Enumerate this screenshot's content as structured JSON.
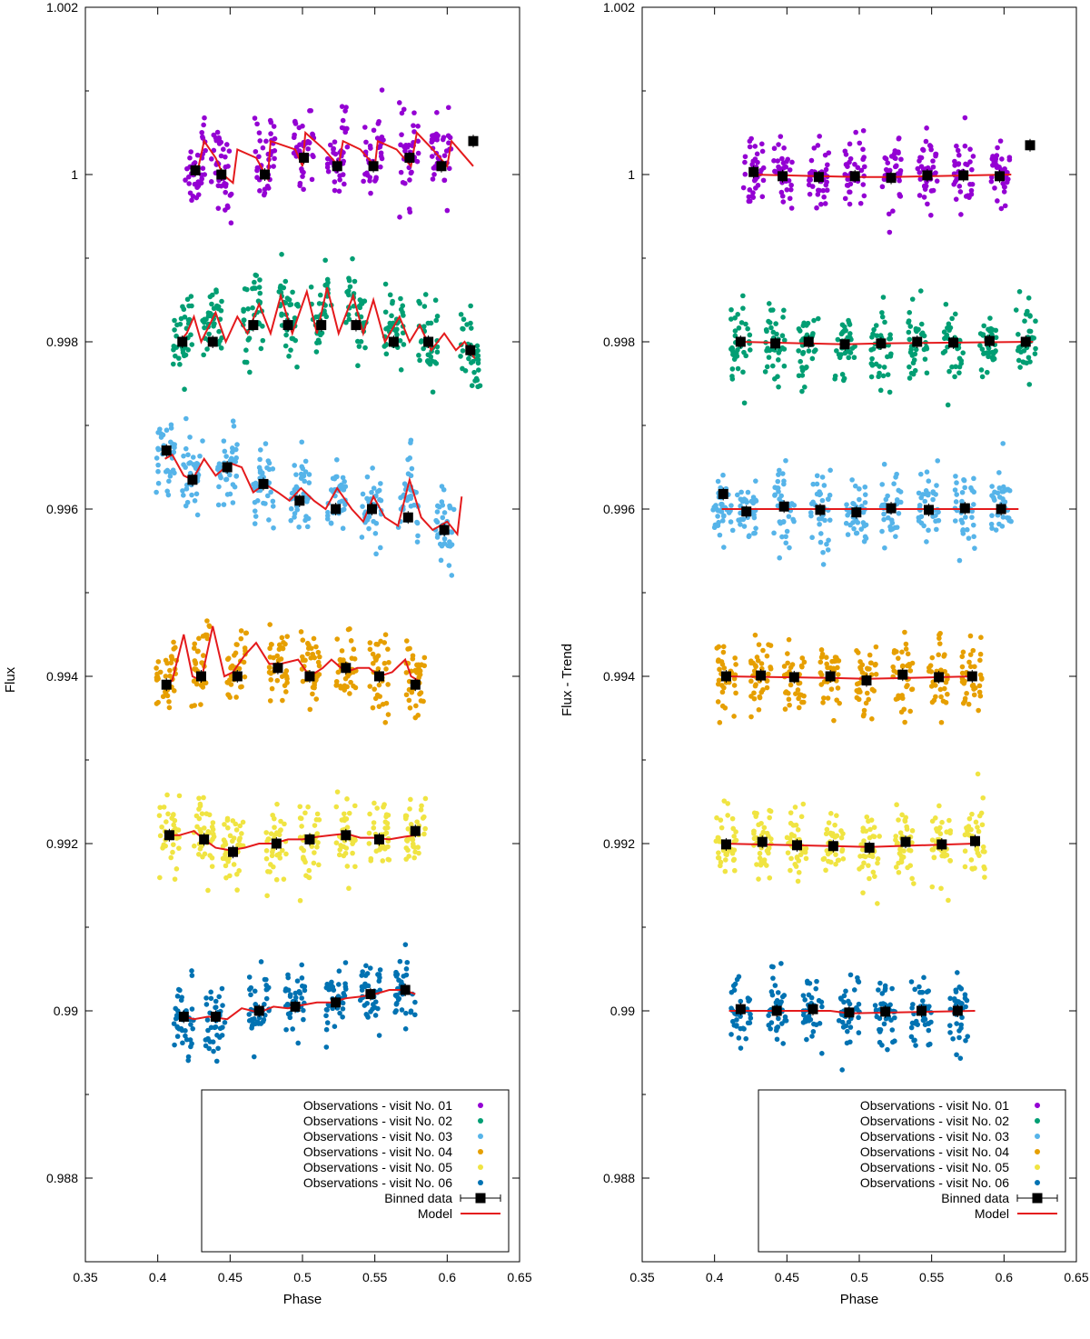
{
  "chart_data": [
    {
      "type": "scatter",
      "panel": "left",
      "title": "",
      "xlabel": "Phase",
      "ylabel": "Flux",
      "xlim": [
        0.35,
        0.65
      ],
      "ylim": [
        0.987,
        1.002
      ],
      "xticks": [
        "0.35",
        "0.4",
        "0.45",
        "0.5",
        "0.55",
        "0.6",
        "0.65"
      ],
      "yticks": [
        "0.988",
        "0.99",
        "0.992",
        "0.994",
        "0.996",
        "0.998",
        "1",
        "1.002"
      ],
      "legend_position": "bottom-right",
      "legend": [
        "Observations - visit No. 01",
        "Observations - visit No. 02",
        "Observations - visit No. 03",
        "Observations - visit No. 04",
        "Observations - visit No. 05",
        "Observations - visit No. 06",
        "Binned data",
        "Model"
      ],
      "series": [
        {
          "name": "Observations - visit No. 01",
          "color": "#9400d3",
          "phase_range": [
            0.425,
            0.605
          ],
          "binned": {
            "x": [
              0.426,
              0.444,
              0.474,
              0.501,
              0.524,
              0.549,
              0.574,
              0.596,
              0.618
            ],
            "y": [
              1.00005,
              1.0,
              1.0,
              1.0002,
              1.0001,
              1.0001,
              1.0002,
              1.0001,
              1.0004
            ]
          },
          "model": {
            "x": [
              0.427,
              0.432,
              0.44,
              0.445,
              0.452,
              0.455,
              0.468,
              0.476,
              0.478,
              0.495,
              0.5,
              0.502,
              0.515,
              0.525,
              0.528,
              0.54,
              0.55,
              0.552,
              0.565,
              0.575,
              0.579,
              0.59,
              0.6,
              0.603,
              0.618
            ],
            "y": [
              1.0,
              1.0004,
              1.0002,
              1.0,
              0.9999,
              1.0003,
              1.0002,
              0.99995,
              1.0004,
              1.0003,
              1.0001,
              1.0005,
              1.0003,
              1.0001,
              1.0004,
              1.0003,
              1.0001,
              1.0004,
              1.0003,
              1.0001,
              1.0005,
              1.0003,
              1.0001,
              1.0004,
              1.0001
            ]
          }
        },
        {
          "name": "Observations - visit No. 02",
          "color": "#009e73",
          "phase_range": [
            0.41,
            0.62
          ],
          "binned": {
            "x": [
              0.417,
              0.438,
              0.466,
              0.49,
              0.513,
              0.537,
              0.563,
              0.587,
              0.616
            ],
            "y": [
              0.998,
              0.998,
              0.9982,
              0.9982,
              0.9982,
              0.9982,
              0.998,
              0.998,
              0.9979
            ]
          },
          "model": {
            "x": [
              0.415,
              0.42,
              0.425,
              0.43,
              0.44,
              0.447,
              0.455,
              0.462,
              0.47,
              0.478,
              0.485,
              0.493,
              0.503,
              0.51,
              0.517,
              0.525,
              0.535,
              0.542,
              0.549,
              0.557,
              0.567,
              0.574,
              0.581,
              0.589,
              0.598,
              0.606,
              0.612,
              0.619
            ],
            "y": [
              0.998,
              0.9981,
              0.9983,
              0.998,
              0.99835,
              0.998,
              0.9983,
              0.9981,
              0.99845,
              0.9981,
              0.99855,
              0.9981,
              0.9986,
              0.9981,
              0.99865,
              0.9981,
              0.99855,
              0.9981,
              0.9985,
              0.998,
              0.9983,
              0.998,
              0.9982,
              0.9979,
              0.9981,
              0.9979,
              0.998,
              0.9978
            ]
          }
        },
        {
          "name": "Observations - visit No. 03",
          "color": "#56b4e9",
          "phase_range": [
            0.405,
            0.61
          ],
          "binned": {
            "x": [
              0.406,
              0.424,
              0.448,
              0.473,
              0.498,
              0.523,
              0.548,
              0.573,
              0.598
            ],
            "y": [
              0.9967,
              0.99635,
              0.9965,
              0.9963,
              0.9961,
              0.996,
              0.996,
              0.9959,
              0.99575
            ]
          },
          "model": {
            "x": [
              0.405,
              0.41,
              0.418,
              0.424,
              0.432,
              0.44,
              0.45,
              0.458,
              0.466,
              0.474,
              0.483,
              0.491,
              0.499,
              0.508,
              0.516,
              0.524,
              0.534,
              0.542,
              0.549,
              0.557,
              0.566,
              0.574,
              0.582,
              0.59,
              0.6,
              0.607,
              0.61
            ],
            "y": [
              0.9966,
              0.99665,
              0.9964,
              0.99635,
              0.9966,
              0.9964,
              0.99655,
              0.9965,
              0.9962,
              0.9963,
              0.9962,
              0.9961,
              0.99625,
              0.9961,
              0.996,
              0.99625,
              0.996,
              0.99585,
              0.99615,
              0.9959,
              0.9958,
              0.99635,
              0.9959,
              0.99575,
              0.99585,
              0.9957,
              0.99615
            ]
          }
        },
        {
          "name": "Observations - visit No. 04",
          "color": "#e69f00",
          "phase_range": [
            0.405,
            0.58
          ],
          "binned": {
            "x": [
              0.406,
              0.43,
              0.455,
              0.483,
              0.505,
              0.53,
              0.553,
              0.578
            ],
            "y": [
              0.9939,
              0.994,
              0.994,
              0.9941,
              0.994,
              0.9941,
              0.994,
              0.9939
            ]
          },
          "model": {
            "x": [
              0.406,
              0.41,
              0.418,
              0.424,
              0.43,
              0.438,
              0.446,
              0.452,
              0.46,
              0.468,
              0.477,
              0.485,
              0.497,
              0.505,
              0.514,
              0.52,
              0.53,
              0.538,
              0.546,
              0.553,
              0.562,
              0.571,
              0.575,
              0.58
            ],
            "y": [
              0.9939,
              0.99395,
              0.9945,
              0.994,
              0.99395,
              0.9946,
              0.994,
              0.99405,
              0.99425,
              0.9944,
              0.99415,
              0.99415,
              0.9942,
              0.994,
              0.9941,
              0.9942,
              0.99405,
              0.9941,
              0.9941,
              0.994,
              0.99405,
              0.9942,
              0.994,
              0.99395
            ]
          }
        },
        {
          "name": "Observations - visit No. 05",
          "color": "#f0e442",
          "phase_range": [
            0.405,
            0.58
          ],
          "binned": {
            "x": [
              0.408,
              0.432,
              0.452,
              0.482,
              0.505,
              0.53,
              0.553,
              0.578
            ],
            "y": [
              0.9921,
              0.99205,
              0.9919,
              0.992,
              0.99205,
              0.9921,
              0.99205,
              0.99215
            ]
          },
          "model": {
            "x": [
              0.406,
              0.415,
              0.425,
              0.432,
              0.44,
              0.45,
              0.46,
              0.47,
              0.48,
              0.49,
              0.5,
              0.51,
              0.52,
              0.53,
              0.54,
              0.55,
              0.56,
              0.57,
              0.578
            ],
            "y": [
              0.9921,
              0.9921,
              0.99215,
              0.99205,
              0.99195,
              0.99192,
              0.99195,
              0.992,
              0.992,
              0.99205,
              0.99205,
              0.99208,
              0.9921,
              0.99212,
              0.99207,
              0.99207,
              0.99205,
              0.99208,
              0.9921
            ]
          }
        },
        {
          "name": "Observations - visit No. 06",
          "color": "#0072b2",
          "phase_range": [
            0.41,
            0.57
          ],
          "binned": {
            "x": [
              0.418,
              0.44,
              0.47,
              0.495,
              0.523,
              0.547,
              0.571
            ],
            "y": [
              0.98993,
              0.98993,
              0.99,
              0.99005,
              0.9901,
              0.9902,
              0.99025
            ]
          },
          "model": {
            "x": [
              0.415,
              0.425,
              0.435,
              0.448,
              0.458,
              0.47,
              0.48,
              0.49,
              0.5,
              0.51,
              0.52,
              0.53,
              0.54,
              0.55,
              0.56,
              0.57,
              0.578
            ],
            "y": [
              0.98995,
              0.9899,
              0.98993,
              0.9899,
              0.99003,
              0.98998,
              0.99005,
              0.99003,
              0.99007,
              0.9901,
              0.9901,
              0.99015,
              0.99017,
              0.9902,
              0.99025,
              0.99025,
              0.9902
            ]
          }
        }
      ]
    },
    {
      "type": "scatter",
      "panel": "right",
      "title": "",
      "xlabel": "Phase",
      "ylabel": "Flux - Trend",
      "xlim": [
        0.35,
        0.65
      ],
      "ylim": [
        0.987,
        1.002
      ],
      "xticks": [
        "0.35",
        "0.4",
        "0.45",
        "0.5",
        "0.55",
        "0.6",
        "0.65"
      ],
      "yticks": [
        "0.988",
        "0.99",
        "0.992",
        "0.994",
        "0.996",
        "0.998",
        "1",
        "1.002"
      ],
      "legend_position": "bottom-right",
      "legend": [
        "Observations - visit No. 01",
        "Observations - visit No. 02",
        "Observations - visit No. 03",
        "Observations - visit No. 04",
        "Observations - visit No. 05",
        "Observations - visit No. 06",
        "Binned data",
        "Model"
      ],
      "series": [
        {
          "name": "Observations - visit No. 01",
          "color": "#9400d3",
          "phase_range": [
            0.425,
            0.605
          ],
          "binned": {
            "x": [
              0.427,
              0.447,
              0.472,
              0.497,
              0.522,
              0.547,
              0.572,
              0.597,
              0.618
            ],
            "y": [
              1.00003,
              0.99998,
              0.99997,
              0.99998,
              0.99996,
              0.99999,
              0.99999,
              0.99998,
              1.00035
            ]
          },
          "model": {
            "x": [
              0.425,
              0.5,
              0.52,
              0.605
            ],
            "y": [
              1.0,
              0.99997,
              0.99997,
              1.0
            ]
          }
        },
        {
          "name": "Observations - visit No. 02",
          "color": "#009e73",
          "phase_range": [
            0.41,
            0.62
          ],
          "binned": {
            "x": [
              0.418,
              0.442,
              0.465,
              0.49,
              0.515,
              0.54,
              0.565,
              0.59,
              0.615
            ],
            "y": [
              0.998,
              0.99798,
              0.998,
              0.99797,
              0.99798,
              0.998,
              0.99799,
              0.99801,
              0.998
            ]
          },
          "model": {
            "x": [
              0.418,
              0.49,
              0.515,
              0.62
            ],
            "y": [
              0.998,
              0.99797,
              0.99798,
              0.998
            ]
          }
        },
        {
          "name": "Observations - visit No. 03",
          "color": "#56b4e9",
          "phase_range": [
            0.405,
            0.61
          ],
          "binned": {
            "x": [
              0.406,
              0.422,
              0.448,
              0.473,
              0.498,
              0.522,
              0.548,
              0.573,
              0.598
            ],
            "y": [
              0.99618,
              0.99597,
              0.99603,
              0.99599,
              0.99596,
              0.99601,
              0.99599,
              0.99601,
              0.996
            ]
          },
          "model": {
            "x": [
              0.405,
              0.61
            ],
            "y": [
              0.996,
              0.996
            ]
          }
        },
        {
          "name": "Observations - visit No. 04",
          "color": "#e69f00",
          "phase_range": [
            0.405,
            0.58
          ],
          "binned": {
            "x": [
              0.408,
              0.432,
              0.455,
              0.48,
              0.505,
              0.53,
              0.555,
              0.578
            ],
            "y": [
              0.994,
              0.99401,
              0.99399,
              0.994,
              0.99395,
              0.99402,
              0.99399,
              0.994
            ]
          },
          "model": {
            "x": [
              0.405,
              0.48,
              0.505,
              0.58
            ],
            "y": [
              0.994,
              0.99398,
              0.99397,
              0.994
            ]
          }
        },
        {
          "name": "Observations - visit No. 05",
          "color": "#f0e442",
          "phase_range": [
            0.405,
            0.58
          ],
          "binned": {
            "x": [
              0.408,
              0.433,
              0.457,
              0.482,
              0.507,
              0.532,
              0.557,
              0.58
            ],
            "y": [
              0.99199,
              0.99202,
              0.99198,
              0.99197,
              0.99195,
              0.99202,
              0.99199,
              0.99203
            ]
          },
          "model": {
            "x": [
              0.405,
              0.482,
              0.507,
              0.58
            ],
            "y": [
              0.992,
              0.99197,
              0.99196,
              0.992
            ]
          }
        },
        {
          "name": "Observations - visit No. 06",
          "color": "#0072b2",
          "phase_range": [
            0.41,
            0.58
          ],
          "binned": {
            "x": [
              0.418,
              0.443,
              0.468,
              0.493,
              0.518,
              0.543,
              0.568
            ],
            "y": [
              0.99002,
              0.99,
              0.99002,
              0.98998,
              0.98999,
              0.99,
              0.99
            ]
          },
          "model": {
            "x": [
              0.41,
              0.48,
              0.493,
              0.58
            ],
            "y": [
              0.99,
              0.99,
              0.98997,
              0.99
            ]
          }
        }
      ]
    }
  ]
}
